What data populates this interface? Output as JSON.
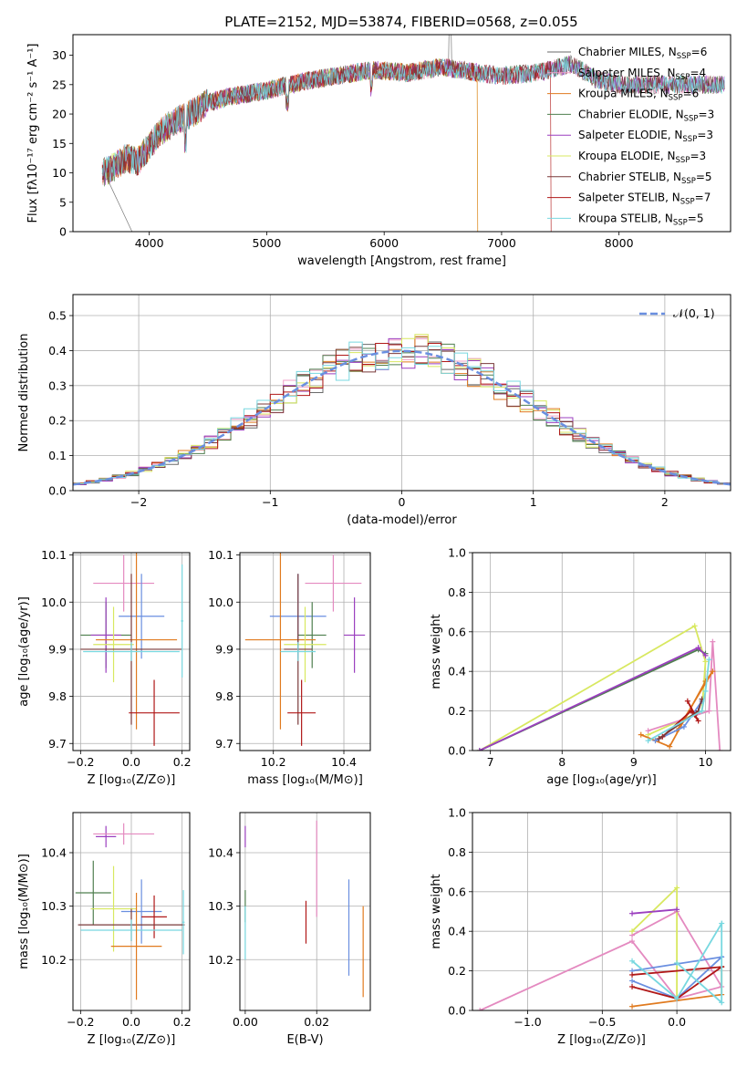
{
  "figure": {
    "title": "PLATE=2152, MJD=53874, FIBERID=0568, z=0.055"
  },
  "colors": {
    "chabrier_miles": "#6a6a6a",
    "salpeter_miles": "#f0a0c8",
    "kroupa_miles": "#e07a1f",
    "chabrier_elodie": "#4f7f4f",
    "salpeter_elodie": "#9b3fbf",
    "kroupa_elodie": "#d8e860",
    "chabrier_stelib": "#7a3a3a",
    "salpeter_stelib": "#b01818",
    "kroupa_stelib": "#78d8e0",
    "blue": "#6a8fe0",
    "pink": "#e48ac0",
    "grey": "#606060"
  },
  "chart_data": [
    {
      "id": "spectrum",
      "type": "line",
      "xlabel": "wavelength [Angstrom, rest frame]",
      "ylabel": "Flux [fλ10⁻¹⁷ erg cm⁻² s⁻¹ A⁻¹]",
      "xlim": [
        3350,
        8950
      ],
      "ylim": [
        0,
        33.5
      ],
      "xticks": [
        4000,
        5000,
        6000,
        7000,
        8000
      ],
      "yticks": [
        0,
        5,
        10,
        15,
        20,
        25,
        30
      ],
      "legend": [
        "Chabrier MILES, N_SSP=6",
        "Salpeter MILES, N_SSP=4",
        "Kroupa MILES, N_SSP=6",
        "Chabrier ELODIE, N_SSP=3",
        "Salpeter ELODIE, N_SSP=3",
        "Kroupa ELODIE, N_SSP=3",
        "Chabrier STELIB, N_SSP=5",
        "Salpeter STELIB, N_SSP=7",
        "Kroupa STELIB, N_SSP=5"
      ],
      "legend_location": "right",
      "continuum_x": [
        3600,
        3700,
        3800,
        3900,
        4000,
        4100,
        4200,
        4300,
        4400,
        4500,
        4700,
        5000,
        5300,
        5600,
        5900,
        6200,
        6500,
        6800,
        7000,
        7300,
        7600,
        7800,
        8000,
        8300,
        8600,
        8900
      ],
      "continuum_y": [
        10,
        11,
        12.5,
        12,
        14.5,
        17,
        18.5,
        19.5,
        20.5,
        22,
        23,
        24,
        25.5,
        26.5,
        27.5,
        27,
        28,
        27,
        26.5,
        27,
        28.5,
        26,
        25,
        25,
        25,
        25
      ]
    },
    {
      "id": "residuals",
      "type": "step",
      "xlabel": "(data-model)/error",
      "ylabel": "Normed distribution",
      "xlim": [
        -2.5,
        2.5
      ],
      "ylim": [
        0,
        0.56
      ],
      "xticks": [
        -2,
        -1,
        0,
        1,
        2
      ],
      "yticks": [
        0.0,
        0.1,
        0.2,
        0.3,
        0.4,
        0.5
      ],
      "legend": [
        "𝒩(0, 1)"
      ],
      "legend_location": "upper right",
      "normal_mean": 0,
      "normal_sigma": 1
    },
    {
      "id": "age_vs_z",
      "type": "errorbar",
      "xlabel": "Z [log₁₀(Z/Z⊙)]",
      "ylabel": "age  [log₁₀(age/yr)]",
      "xlim": [
        -0.23,
        0.23
      ],
      "ylim": [
        9.685,
        10.105
      ],
      "xticks": [
        -0.2,
        0.0,
        0.2
      ],
      "yticks": [
        9.7,
        9.8,
        9.9,
        10.0,
        10.1
      ],
      "points": [
        {
          "color": "pink",
          "x": -0.03,
          "y": 10.04,
          "xerr": 0.12,
          "yerr": 0.06
        },
        {
          "color": "blue",
          "x": 0.04,
          "y": 9.97,
          "xerr": 0.09,
          "yerr": 0.09
        },
        {
          "color": "chabrier_elodie",
          "x": -0.1,
          "y": 9.93,
          "xerr": 0.1,
          "yerr": 0.07
        },
        {
          "color": "salpeter_elodie",
          "x": -0.1,
          "y": 9.93,
          "xerr": 0.06,
          "yerr": 0.08
        },
        {
          "color": "kroupa_miles",
          "x": 0.02,
          "y": 9.92,
          "xerr": 0.16,
          "yerr": 0.19
        },
        {
          "color": "kroupa_elodie",
          "x": -0.07,
          "y": 9.91,
          "xerr": 0.08,
          "yerr": 0.08
        },
        {
          "color": "chabrier_stelib",
          "x": 0.0,
          "y": 9.9,
          "xerr": 0.2,
          "yerr": 0.16
        },
        {
          "color": "kroupa_stelib",
          "x": 0.0,
          "y": 9.895,
          "xerr": 0.19,
          "yerr": 0.02
        },
        {
          "color": "kroupa_stelib",
          "x": 0.2,
          "y": 9.96,
          "xerr": 0.005,
          "yerr": 0.12
        },
        {
          "color": "salpeter_stelib",
          "x": 0.09,
          "y": 9.765,
          "xerr": 0.1,
          "yerr": 0.07
        }
      ]
    },
    {
      "id": "age_vs_mass",
      "type": "errorbar",
      "xlabel": "mass [log₁₀(M/M⊙)]",
      "ylabel": "",
      "xlim": [
        10.105,
        10.475
      ],
      "ylim": [
        9.685,
        10.105
      ],
      "xticks": [
        10.2,
        10.4
      ],
      "yticks": [
        9.7,
        9.8,
        9.9,
        10.0,
        10.1
      ],
      "points": [
        {
          "color": "pink",
          "x": 10.37,
          "y": 10.04,
          "xerr": 0.08,
          "yerr": 0.06
        },
        {
          "color": "blue",
          "x": 10.27,
          "y": 9.97,
          "xerr": 0.08,
          "yerr": 0.09
        },
        {
          "color": "chabrier_elodie",
          "x": 10.31,
          "y": 9.93,
          "xerr": 0.04,
          "yerr": 0.07
        },
        {
          "color": "salpeter_elodie",
          "x": 10.43,
          "y": 9.93,
          "xerr": 0.03,
          "yerr": 0.08
        },
        {
          "color": "kroupa_miles",
          "x": 10.22,
          "y": 9.92,
          "xerr": 0.1,
          "yerr": 0.19
        },
        {
          "color": "kroupa_elodie",
          "x": 10.29,
          "y": 9.91,
          "xerr": 0.06,
          "yerr": 0.08
        },
        {
          "color": "chabrier_stelib",
          "x": 10.27,
          "y": 9.9,
          "xerr": 0.04,
          "yerr": 0.16
        },
        {
          "color": "kroupa_stelib",
          "x": 10.27,
          "y": 9.895,
          "xerr": 0.05,
          "yerr": 0.02
        },
        {
          "color": "salpeter_stelib",
          "x": 10.28,
          "y": 9.765,
          "xerr": 0.04,
          "yerr": 0.07
        }
      ]
    },
    {
      "id": "weight_vs_age",
      "type": "line",
      "xlabel": "age  [log₁₀(age/yr)]",
      "ylabel": "mass weight",
      "xlim": [
        6.75,
        10.35
      ],
      "ylim": [
        0,
        1.0
      ],
      "xticks": [
        7,
        8,
        9,
        10
      ],
      "yticks": [
        0.0,
        0.2,
        0.4,
        0.6,
        0.8,
        1.0
      ],
      "series": [
        {
          "color": "kroupa_elodie",
          "x": [
            6.85,
            9.85,
            10.0,
            9.95,
            9.2
          ],
          "y": [
            0.0,
            0.63,
            0.45,
            0.2,
            0.08
          ]
        },
        {
          "color": "chabrier_elodie",
          "x": [
            6.85,
            9.9,
            10.0
          ],
          "y": [
            0.0,
            0.51,
            0.49
          ]
        },
        {
          "color": "salpeter_elodie",
          "x": [
            6.85,
            9.9,
            10.0
          ],
          "y": [
            0.0,
            0.52,
            0.48
          ]
        },
        {
          "color": "pink",
          "x": [
            9.2,
            10.05,
            10.1,
            10.2
          ],
          "y": [
            0.1,
            0.2,
            0.55,
            0.0
          ]
        },
        {
          "color": "kroupa_miles",
          "x": [
            9.1,
            9.5,
            10.0,
            10.1,
            9.6
          ],
          "y": [
            0.08,
            0.02,
            0.35,
            0.4,
            0.1
          ]
        },
        {
          "color": "blue",
          "x": [
            9.3,
            9.7,
            9.95
          ],
          "y": [
            0.05,
            0.12,
            0.25
          ]
        },
        {
          "color": "salpeter_stelib",
          "x": [
            9.4,
            9.8,
            9.9,
            9.75,
            9.85
          ],
          "y": [
            0.07,
            0.2,
            0.15,
            0.25,
            0.18
          ]
        },
        {
          "color": "chabrier_stelib",
          "x": [
            9.35,
            9.9,
            9.95
          ],
          "y": [
            0.06,
            0.2,
            0.26
          ]
        },
        {
          "color": "kroupa_stelib",
          "x": [
            9.2,
            9.95,
            10.0,
            10.05
          ],
          "y": [
            0.05,
            0.2,
            0.3,
            0.46
          ]
        }
      ]
    },
    {
      "id": "mass_vs_z",
      "type": "errorbar",
      "xlabel": "Z [log₁₀(Z/Z⊙)]",
      "ylabel": "mass [log₁₀(M/M⊙)]",
      "xlim": [
        -0.23,
        0.23
      ],
      "ylim": [
        10.105,
        10.475
      ],
      "xticks": [
        -0.2,
        0.0,
        0.2
      ],
      "yticks": [
        10.2,
        10.3,
        10.4
      ],
      "points": [
        {
          "color": "salpeter_elodie",
          "x": -0.1,
          "y": 10.43,
          "xerr": 0.04,
          "yerr": 0.02
        },
        {
          "color": "pink",
          "x": -0.03,
          "y": 10.435,
          "xerr": 0.12,
          "yerr": 0.02
        },
        {
          "color": "chabrier_elodie",
          "x": -0.15,
          "y": 10.325,
          "xerr": 0.07,
          "yerr": 0.06
        },
        {
          "color": "blue",
          "x": 0.04,
          "y": 10.29,
          "xerr": 0.08,
          "yerr": 0.06
        },
        {
          "color": "salpeter_stelib",
          "x": 0.09,
          "y": 10.28,
          "xerr": 0.05,
          "yerr": 0.04
        },
        {
          "color": "kroupa_elodie",
          "x": -0.07,
          "y": 10.295,
          "xerr": 0.09,
          "yerr": 0.08
        },
        {
          "color": "chabrier_stelib",
          "x": 0.0,
          "y": 10.265,
          "xerr": 0.21,
          "yerr": 0.03
        },
        {
          "color": "kroupa_stelib",
          "x": 0.0,
          "y": 10.255,
          "xerr": 0.2,
          "yerr": 0.02
        },
        {
          "color": "kroupa_stelib",
          "x": 0.205,
          "y": 10.27,
          "xerr": 0.005,
          "yerr": 0.06
        },
        {
          "color": "kroupa_miles",
          "x": 0.02,
          "y": 10.225,
          "xerr": 0.1,
          "yerr": 0.1
        }
      ]
    },
    {
      "id": "mass_vs_ebv",
      "type": "errorbar",
      "xlabel": "E(B-V)",
      "ylabel": "",
      "xlim": [
        -0.0015,
        0.035
      ],
      "ylim": [
        10.105,
        10.475
      ],
      "xticks": [
        0.0,
        0.02
      ],
      "yticks": [
        10.2,
        10.3,
        10.4
      ],
      "points": [
        {
          "color": "salpeter_elodie",
          "x": 0.0,
          "y": 10.43,
          "xerr": 0,
          "yerr": 0.02
        },
        {
          "color": "chabrier_elodie",
          "x": 0.0,
          "y": 10.3,
          "xerr": 0,
          "yerr": 0.03
        },
        {
          "color": "kroupa_stelib",
          "x": 0.0,
          "y": 10.25,
          "xerr": 0,
          "yerr": 0.05
        },
        {
          "color": "pink",
          "x": 0.02,
          "y": 10.37,
          "xerr": 0,
          "yerr": 0.09
        },
        {
          "color": "salpeter_stelib",
          "x": 0.017,
          "y": 10.27,
          "xerr": 0,
          "yerr": 0.04
        },
        {
          "color": "blue",
          "x": 0.029,
          "y": 10.26,
          "xerr": 0,
          "yerr": 0.09
        },
        {
          "color": "kroupa_miles",
          "x": 0.033,
          "y": 10.215,
          "xerr": 0,
          "yerr": 0.085
        }
      ]
    },
    {
      "id": "weight_vs_z",
      "type": "line",
      "xlabel": "Z [log₁₀(Z/Z⊙)]",
      "ylabel": "mass weight",
      "xlim": [
        -1.37,
        0.36
      ],
      "ylim": [
        0,
        1.0
      ],
      "xticks": [
        -1.0,
        -0.5,
        0.0
      ],
      "yticks": [
        0.0,
        0.2,
        0.4,
        0.6,
        0.8,
        1.0
      ],
      "series": [
        {
          "color": "pink",
          "x": [
            -1.32,
            -0.3,
            0.0,
            0.3,
            0.0,
            -0.3
          ],
          "y": [
            0.0,
            0.35,
            0.06,
            0.12,
            0.5,
            0.38
          ]
        },
        {
          "color": "kroupa_elodie",
          "x": [
            -0.3,
            0.0,
            0.0
          ],
          "y": [
            0.4,
            0.62,
            0.06
          ]
        },
        {
          "color": "salpeter_elodie",
          "x": [
            -0.3,
            0.0
          ],
          "y": [
            0.49,
            0.51
          ]
        },
        {
          "color": "blue",
          "x": [
            -0.3,
            0.0,
            0.3,
            -0.3
          ],
          "y": [
            0.15,
            0.06,
            0.27,
            0.2
          ]
        },
        {
          "color": "kroupa_miles",
          "x": [
            -0.3,
            0.3,
            0.3
          ],
          "y": [
            0.02,
            0.08,
            0.22
          ]
        },
        {
          "color": "salpeter_stelib",
          "x": [
            -0.3,
            0.0,
            0.3,
            -0.3
          ],
          "y": [
            0.12,
            0.06,
            0.22,
            0.18
          ]
        },
        {
          "color": "kroupa_stelib",
          "x": [
            -0.3,
            0.0,
            0.3,
            0.3,
            0.0
          ],
          "y": [
            0.25,
            0.06,
            0.44,
            0.04,
            0.24
          ]
        }
      ]
    }
  ]
}
